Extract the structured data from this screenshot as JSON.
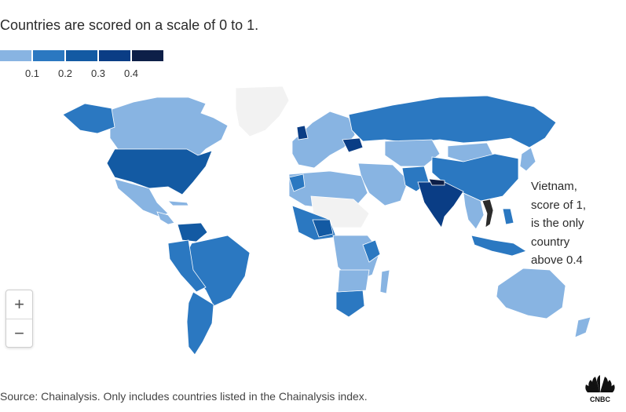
{
  "subtitle": "Countries are scored on a scale of 0 to 1.",
  "legend": {
    "colors": [
      "#88b4e2",
      "#2b78c1",
      "#135aa3",
      "#0a3d85",
      "#0d1f48"
    ],
    "labels": [
      "0.1",
      "0.2",
      "0.3",
      "0.4"
    ]
  },
  "colors": {
    "no_data": "#f2f2f2",
    "vietnam": "#2b2b2b",
    "water": "#ffffff"
  },
  "map_controls": {
    "zoom_in_label": "+",
    "zoom_out_label": "−"
  },
  "annotation": {
    "lines": [
      "Vietnam,",
      "score of 1,",
      "is the only",
      "country",
      "above 0.4"
    ]
  },
  "source": "Source: Chainalysis. Only includes countries listed in the Chainalysis index.",
  "logo": {
    "icon": "nbc-peacock-icon",
    "text": "CNBC"
  }
}
